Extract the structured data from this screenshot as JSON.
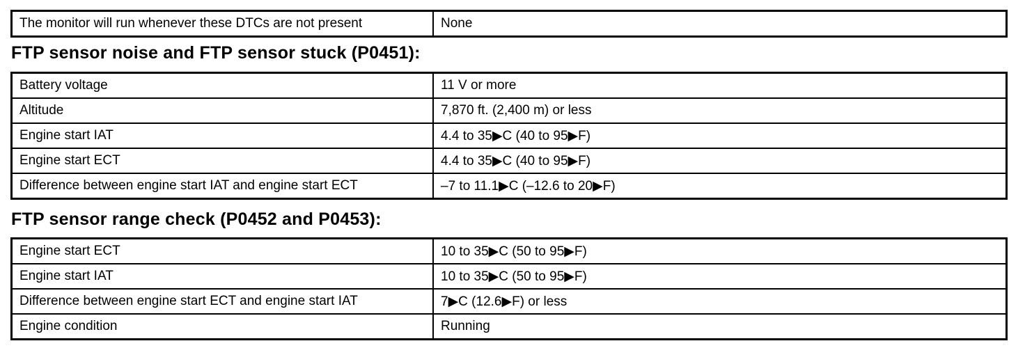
{
  "table_dtc": {
    "rows": [
      {
        "label": "The monitor will run whenever these DTCs are not present",
        "value": "None"
      }
    ]
  },
  "section_p0451": {
    "heading": "FTP sensor noise and FTP sensor stuck (P0451):",
    "rows": [
      {
        "label": "Battery voltage",
        "value": "11 V or more"
      },
      {
        "label": "Altitude",
        "value": "7,870 ft. (2,400 m) or less"
      },
      {
        "label": "Engine start IAT",
        "value": "4.4 to 35▶C (40 to 95▶F)"
      },
      {
        "label": "Engine start ECT",
        "value": "4.4 to 35▶C (40 to 95▶F)"
      },
      {
        "label": "Difference between engine start IAT and engine start ECT",
        "value": "–7 to 11.1▶C (–12.6 to 20▶F)"
      }
    ]
  },
  "section_p0452": {
    "heading": "FTP sensor range check (P0452 and P0453):",
    "rows": [
      {
        "label": "Engine start ECT",
        "value": "10 to 35▶C (50 to 95▶F)"
      },
      {
        "label": "Engine start IAT",
        "value": "10 to 35▶C (50 to 95▶F)"
      },
      {
        "label": "Difference between engine start ECT and engine start IAT",
        "value": "7▶C (12.6▶F) or less"
      },
      {
        "label": "Engine condition",
        "value": "Running"
      }
    ]
  }
}
